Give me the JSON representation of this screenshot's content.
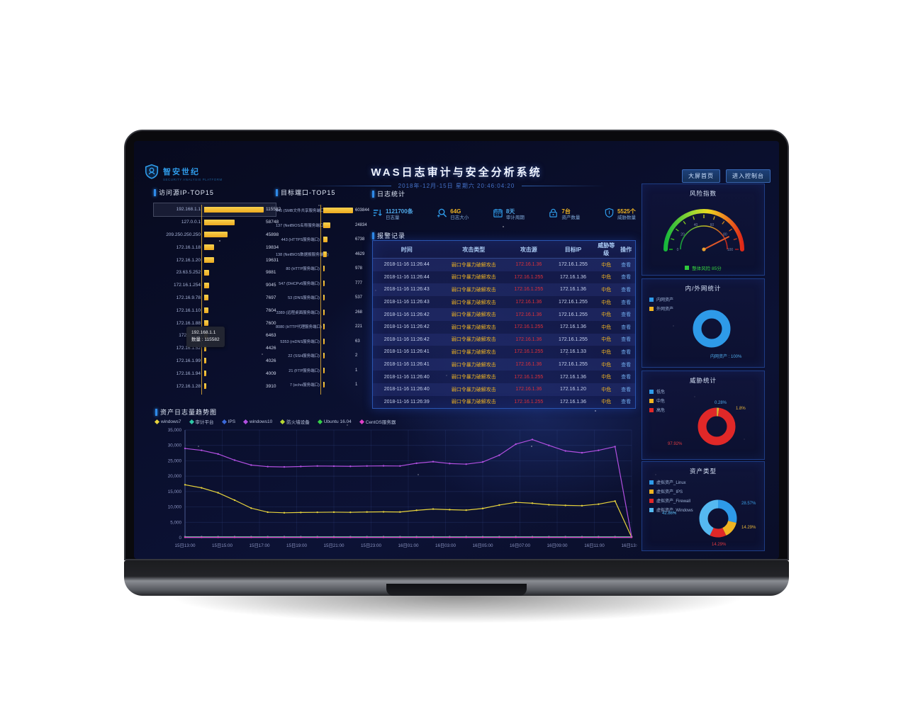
{
  "app": {
    "logo": {
      "text": "智安世纪",
      "subtext": "SECURITY ANALYSIS PLATFORM"
    },
    "title": "WAS日志审计与安全分析系统",
    "datetime": "2018年-12月-15日 星期六 20:46:04:20",
    "nav_buttons": [
      {
        "label": "大屏首页"
      },
      {
        "label": "进入控制台"
      }
    ]
  },
  "ip_top15": {
    "title": "访问源IP-TOP15",
    "tooltip": {
      "name": "192.168.1.1",
      "count_label": "数量 : 115582"
    },
    "bars": [
      {
        "label": "192.168.1.1",
        "value": 115582
      },
      {
        "label": "127.0.0.1",
        "value": 58748
      },
      {
        "label": "209.250.250.250",
        "value": 45898
      },
      {
        "label": "172.16.1.18",
        "value": 19834
      },
      {
        "label": "172.16.1.20",
        "value": 19631
      },
      {
        "label": "23.63.5.252",
        "value": 9881
      },
      {
        "label": "172.16.1.254",
        "value": 9045
      },
      {
        "label": "172.16.9.78",
        "value": 7697
      },
      {
        "label": "172.16.1.10",
        "value": 7604
      },
      {
        "label": "172.16.1.88",
        "value": 7600
      },
      {
        "label": "172.16.1.9",
        "value": 6463
      },
      {
        "label": "172.16.1.52",
        "value": 4426
      },
      {
        "label": "172.16.1.99",
        "value": 4026
      },
      {
        "label": "172.16.1.94",
        "value": 4009
      },
      {
        "label": "172.16.1.28",
        "value": 3910
      }
    ]
  },
  "port_top15": {
    "title": "目标端口-TOP15",
    "bars": [
      {
        "label": "445 (SMB文件共享服务端口)",
        "value": 603844
      },
      {
        "label": "137 (NetBIOS名称服务端口)",
        "value": 24834
      },
      {
        "label": "443 (HTTPS服务端口)",
        "value": 6738
      },
      {
        "label": "138 (NetBIOS数据报服务端口)",
        "value": 4629
      },
      {
        "label": "80 (HTTP服务端口)",
        "value": 978
      },
      {
        "label": "547 (DHCPv6服务端口)",
        "value": 777
      },
      {
        "label": "53 (DNS服务端口)",
        "value": 537
      },
      {
        "label": "3389 (远程桌面服务端口)",
        "value": 268
      },
      {
        "label": "8080 (HTTP代理服务端口)",
        "value": 221
      },
      {
        "label": "5353 (mDNS服务端口)",
        "value": 63
      },
      {
        "label": "22 (SSH服务端口)",
        "value": 2
      },
      {
        "label": "21 (FTP服务端口)",
        "value": 1
      },
      {
        "label": "7 (echo服务端口)",
        "value": 1
      }
    ]
  },
  "log_stats": {
    "title": "日志统计",
    "items": [
      {
        "icon": "log-list-icon",
        "value": "1121700条",
        "label": "日志量",
        "color": "#4fa8e8"
      },
      {
        "icon": "search-icon",
        "value": "64G",
        "label": "日志大小",
        "color": "#f0b422"
      },
      {
        "icon": "calendar-icon",
        "value": "8天",
        "label": "审计周期",
        "color": "#4fa8e8"
      },
      {
        "icon": "lock-icon",
        "value": "7台",
        "label": "资产数量",
        "color": "#f0b422"
      },
      {
        "icon": "shield-icon",
        "value": "5525个",
        "label": "威胁数量",
        "color": "#f0b422"
      }
    ]
  },
  "alarms": {
    "title": "报警记录",
    "columns": [
      "时间",
      "攻击类型",
      "攻击源",
      "目标IP",
      "威胁等级",
      "操作"
    ],
    "action_label": "查看",
    "rows": [
      {
        "time": "2018-11-16 11:26:44",
        "type": "弱口令暴力破解攻击",
        "source": "172.16.1.36",
        "target": "172.16.1.255",
        "level": "中危"
      },
      {
        "time": "2018-11-16 11:26:44",
        "type": "弱口令暴力破解攻击",
        "source": "172.16.1.255",
        "target": "172.16.1.36",
        "level": "中危"
      },
      {
        "time": "2018-11-16 11:26:43",
        "type": "弱口令暴力破解攻击",
        "source": "172.16.1.255",
        "target": "172.16.1.36",
        "level": "中危"
      },
      {
        "time": "2018-11-16 11:26:43",
        "type": "弱口令暴力破解攻击",
        "source": "172.16.1.36",
        "target": "172.16.1.255",
        "level": "中危"
      },
      {
        "time": "2018-11-16 11:26:42",
        "type": "弱口令暴力破解攻击",
        "source": "172.16.1.36",
        "target": "172.16.1.255",
        "level": "中危"
      },
      {
        "time": "2018-11-16 11:26:42",
        "type": "弱口令暴力破解攻击",
        "source": "172.16.1.255",
        "target": "172.16.1.36",
        "level": "中危"
      },
      {
        "time": "2018-11-16 11:26:42",
        "type": "弱口令暴力破解攻击",
        "source": "172.16.1.36",
        "target": "172.16.1.255",
        "level": "中危"
      },
      {
        "time": "2018-11-16 11:26:41",
        "type": "弱口令暴力破解攻击",
        "source": "172.16.1.255",
        "target": "172.16.1.33",
        "level": "中危"
      },
      {
        "time": "2018-11-16 11:26:41",
        "type": "弱口令暴力破解攻击",
        "source": "172.16.1.36",
        "target": "172.16.1.255",
        "level": "中危"
      },
      {
        "time": "2018-11-16 11:26:40",
        "type": "弱口令暴力破解攻击",
        "source": "172.16.1.255",
        "target": "172.16.1.36",
        "level": "中危"
      },
      {
        "time": "2018-11-16 11:26:40",
        "type": "弱口令暴力破解攻击",
        "source": "172.16.1.36",
        "target": "172.16.1.20",
        "level": "中危"
      },
      {
        "time": "2018-11-16 11:26:39",
        "type": "弱口令暴力破解攻击",
        "source": "172.16.1.255",
        "target": "172.16.1.36",
        "level": "中危"
      }
    ]
  },
  "gauge": {
    "title": "风险指数",
    "value": 85,
    "max": 100,
    "label": "整体风险",
    "unit": "分"
  },
  "net_stats": {
    "title": "内/外网统计",
    "legend": [
      {
        "label": "内网资产",
        "color": "#2e9ae8"
      },
      {
        "label": "外网资产",
        "color": "#f0b422"
      }
    ],
    "segments": [
      {
        "name": "内网资产",
        "pct": 99.98,
        "color": "#2e9ae8"
      },
      {
        "name": "外网资产",
        "pct": 0.02,
        "color": "#f0b422"
      }
    ],
    "callouts": {
      "main": "内网资产 : 100%"
    }
  },
  "threat_stats": {
    "title": "威胁统计",
    "legend": [
      {
        "label": "低危",
        "color": "#2e9ae8"
      },
      {
        "label": "中危",
        "color": "#f0b422"
      },
      {
        "label": "高危",
        "color": "#e02828"
      }
    ],
    "segments": [
      {
        "name": "低危",
        "pct": 0.28,
        "color": "#2e9ae8"
      },
      {
        "name": "中危",
        "pct": 1.8,
        "color": "#f0b422"
      },
      {
        "name": "高危",
        "pct": 97.92,
        "color": "#e02828"
      }
    ],
    "callouts": {
      "low": "0.28%",
      "mid": "1.8%",
      "high": "97.92%"
    }
  },
  "asset_types": {
    "title": "资产类型",
    "legend": [
      {
        "label": "虚拟资产_Linux",
        "color": "#2e9ae8"
      },
      {
        "label": "虚拟资产_IPS",
        "color": "#f0b422"
      },
      {
        "label": "虚拟资产_Firewall",
        "color": "#e02828"
      },
      {
        "label": "虚拟资产_Windows",
        "color": "#55b8f0"
      }
    ],
    "segments": [
      {
        "name": "虚拟资产_Linux",
        "pct": 28.57,
        "color": "#2e9ae8"
      },
      {
        "name": "虚拟资产_IPS",
        "pct": 14.29,
        "color": "#f0b422"
      },
      {
        "name": "虚拟资产_Firewall",
        "pct": 14.29,
        "color": "#e02828"
      },
      {
        "name": "虚拟资产_Windows",
        "pct": 42.86,
        "color": "#55b8f0"
      }
    ],
    "callouts": {
      "linux": "28.57%",
      "ips": "14.29%",
      "firewall": "14.29%",
      "windows": "42.86%"
    }
  },
  "trend": {
    "title": "资产日志量趋势图",
    "y_max": 35000,
    "y_step": 5000,
    "x_labels": [
      "15日13:00",
      "15日15:00",
      "15日17:00",
      "15日19:00",
      "15日21:00",
      "15日23:00",
      "16日01:00",
      "16日03:00",
      "16日05:00",
      "16日07:00",
      "16日09:00",
      "16日11:00",
      "16日13:00"
    ],
    "series": [
      {
        "name": "windows7",
        "color": "#e6d23c",
        "values": [
          17200,
          16200,
          14600,
          12200,
          9600,
          8300,
          8100,
          8200,
          8250,
          8300,
          8250,
          8350,
          8400,
          8350,
          8900,
          9300,
          9100,
          8950,
          9500,
          10600,
          11500,
          11200,
          10700,
          10500,
          10400,
          10900,
          11900,
          200
        ]
      },
      {
        "name": "审计平台",
        "color": "#2ec8a6",
        "flat": 320
      },
      {
        "name": "IPS",
        "color": "#3a68d8",
        "flat": 260
      },
      {
        "name": "windows10",
        "color": "#b14fe0",
        "values": [
          29000,
          28400,
          27200,
          25200,
          23600,
          23100,
          23000,
          23150,
          23300,
          23250,
          23200,
          23300,
          23350,
          23300,
          24200,
          24700,
          24100,
          23900,
          24600,
          26800,
          30400,
          31900,
          30000,
          28200,
          27600,
          28400,
          29600,
          400
        ]
      },
      {
        "name": "防火墙设备",
        "color": "#b8d832",
        "flat": 210
      },
      {
        "name": "Ubuntu 16.04",
        "color": "#35d048",
        "flat": 160
      },
      {
        "name": "CentOS服务器",
        "color": "#e040c8",
        "flat": 120
      }
    ]
  }
}
